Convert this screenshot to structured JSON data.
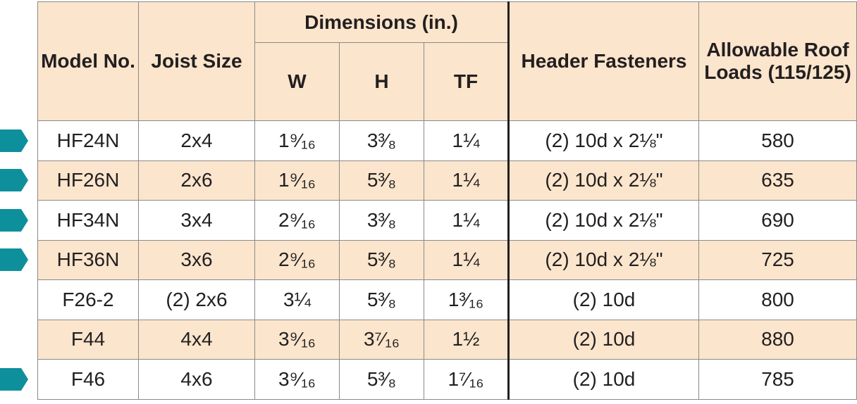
{
  "headers": {
    "model": "Model No.",
    "joist": "Joist Size",
    "dimensions": "Dimensions (in.)",
    "w": "W",
    "h": "H",
    "tf": "TF",
    "fasteners": "Header Fasteners",
    "loads": "Allowable Roof Loads (115/125)"
  },
  "rows": [
    {
      "model": "HF24N",
      "joist": "2x4",
      "w": "1⁹⁄₁₆",
      "h": "3³⁄₈",
      "tf": "1¼",
      "fasteners": "(2) 10d x 2⅛\"",
      "load": "580",
      "arrow": true
    },
    {
      "model": "HF26N",
      "joist": "2x6",
      "w": "1⁹⁄₁₆",
      "h": "5³⁄₈",
      "tf": "1¼",
      "fasteners": "(2) 10d x 2⅛\"",
      "load": "635",
      "arrow": true
    },
    {
      "model": "HF34N",
      "joist": "3x4",
      "w": "2⁹⁄₁₆",
      "h": "3³⁄₈",
      "tf": "1¼",
      "fasteners": "(2) 10d x 2⅛\"",
      "load": "690",
      "arrow": true
    },
    {
      "model": "HF36N",
      "joist": "3x6",
      "w": "2⁹⁄₁₆",
      "h": "5³⁄₈",
      "tf": "1¼",
      "fasteners": "(2) 10d x 2⅛\"",
      "load": "725",
      "arrow": true
    },
    {
      "model": "F26-2",
      "joist": "(2) 2x6",
      "w": "3¼",
      "h": "5³⁄₈",
      "tf": "1³⁄₁₆",
      "fasteners": "(2) 10d",
      "load": "800",
      "arrow": false
    },
    {
      "model": "F44",
      "joist": "4x4",
      "w": "3⁹⁄₁₆",
      "h": "3⁷⁄₁₆",
      "tf": "1½",
      "fasteners": "(2) 10d",
      "load": "880",
      "arrow": false
    },
    {
      "model": "F46",
      "joist": "4x6",
      "w": "3⁹⁄₁₆",
      "h": "5³⁄₈",
      "tf": "1⁷⁄₁₆",
      "fasteners": "(2) 10d",
      "load": "785",
      "arrow": true
    }
  ],
  "arrow_color": "#0e8f9c",
  "accent_band_color": "#fbe5cc"
}
